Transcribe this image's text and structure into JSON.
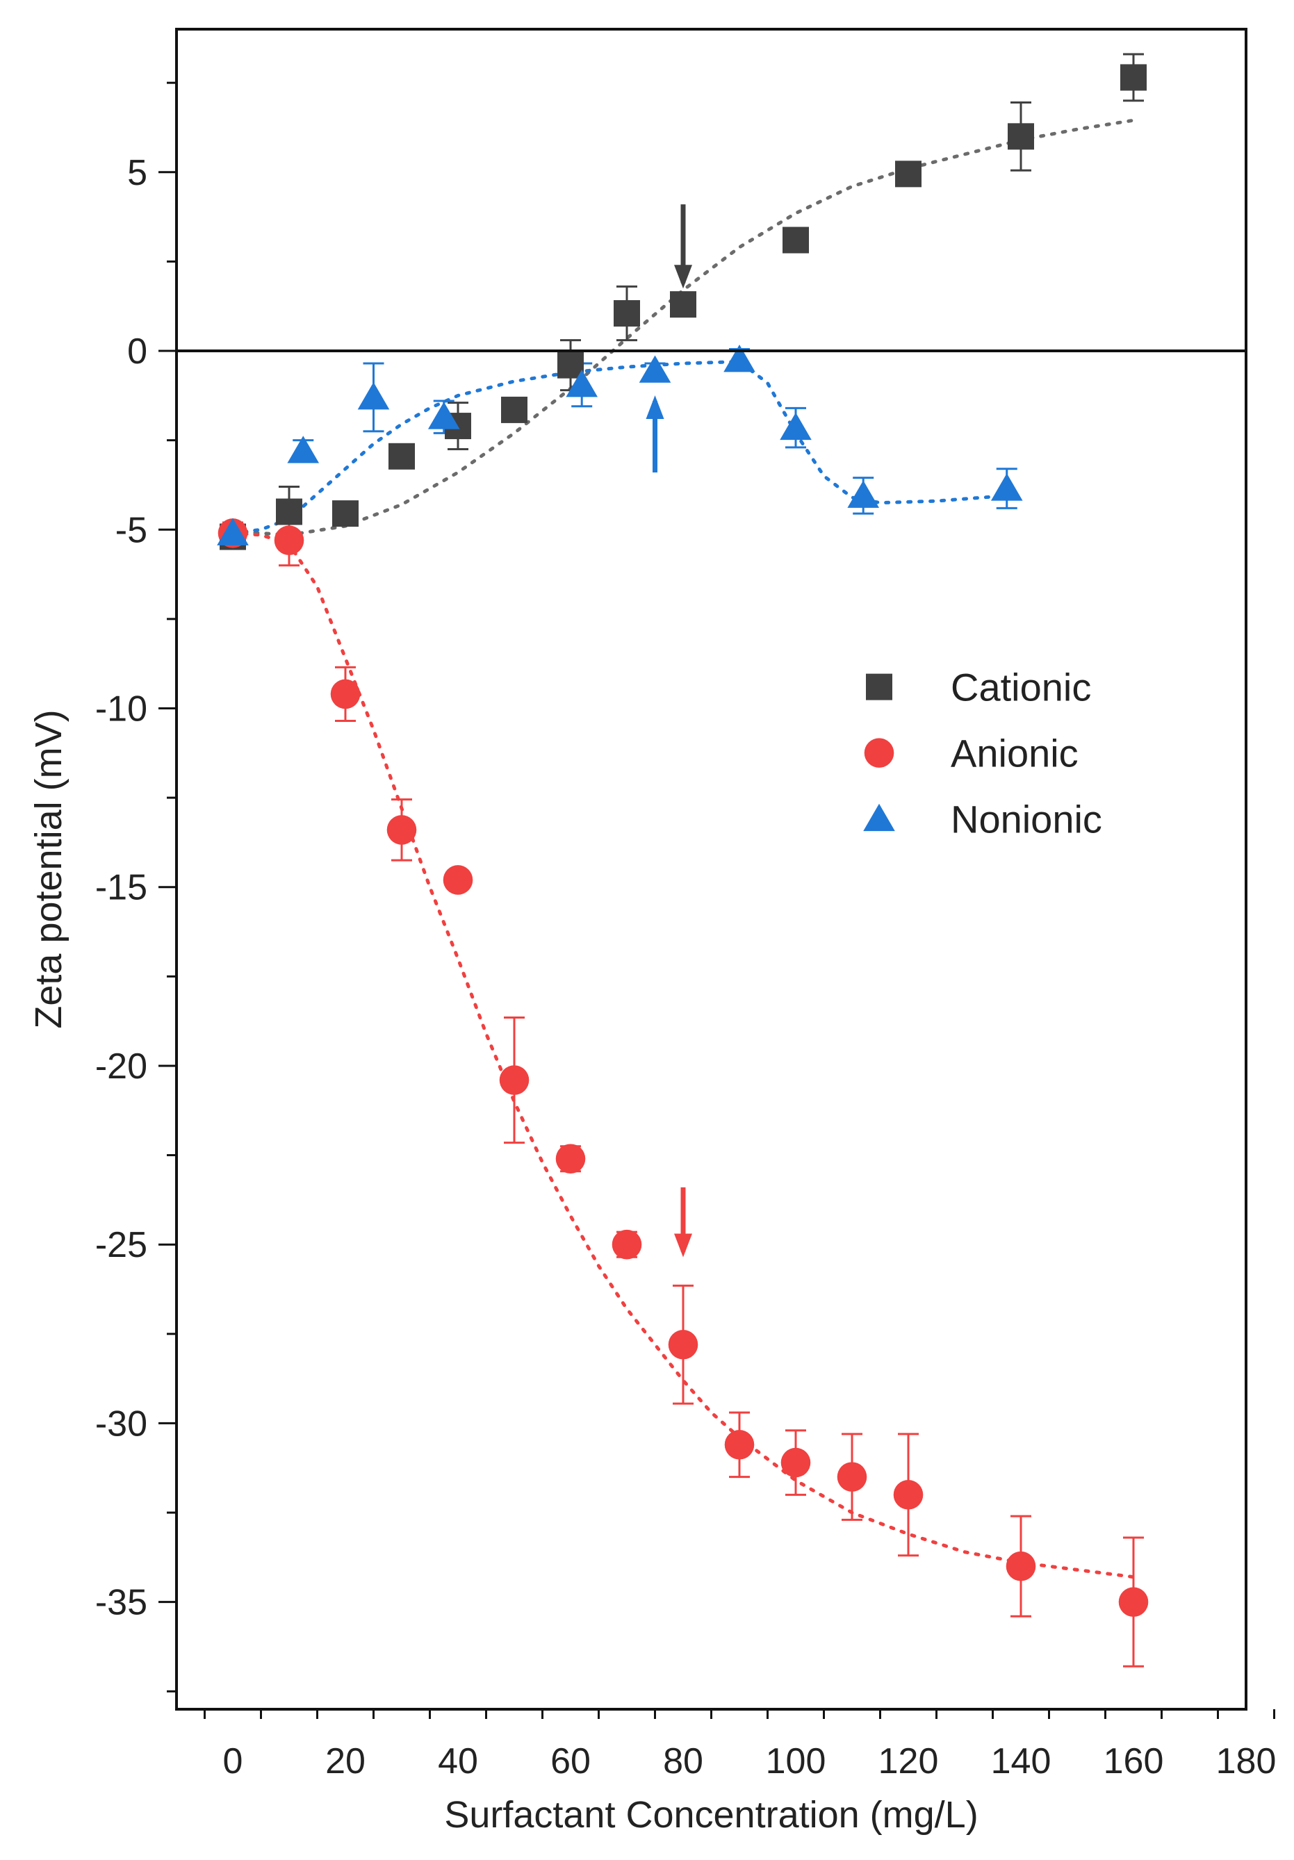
{
  "chart_data": {
    "type": "scatter",
    "title": "",
    "xlabel": "Surfactant Concentration (mg/L)",
    "ylabel": "Zeta potential (mV)",
    "xlim": [
      -10,
      180
    ],
    "ylim": [
      -38,
      9
    ],
    "x_ticks": [
      0,
      20,
      40,
      60,
      80,
      100,
      120,
      140,
      160,
      180
    ],
    "y_ticks": [
      5,
      0,
      -5,
      -10,
      -15,
      -20,
      -25,
      -30,
      -35
    ],
    "x_tick_labels": [
      "0",
      "20",
      "40",
      "60",
      "80",
      "100",
      "120",
      "140",
      "160",
      "180"
    ],
    "y_tick_labels": [
      "5",
      "0",
      "-5",
      "-10",
      "-15",
      "-20",
      "-25",
      "-30",
      "-35"
    ],
    "zero_line": 0,
    "legend_position": "center-right",
    "series": [
      {
        "name": "Cationic",
        "marker": "square",
        "color": "#404040",
        "x": [
          0,
          10,
          20,
          30,
          40,
          50,
          60,
          70,
          80,
          100,
          120,
          140,
          160
        ],
        "y": [
          -5.2,
          -4.5,
          -4.55,
          -2.95,
          -2.1,
          -1.65,
          -0.4,
          1.05,
          1.3,
          3.1,
          4.95,
          6.0,
          7.65
        ],
        "err": [
          0.2,
          0.7,
          0.0,
          0.0,
          0.65,
          0.0,
          0.7,
          0.75,
          0.0,
          0.0,
          0.0,
          0.95,
          0.65
        ],
        "fit_color": "#6b6b6b",
        "fit_x": [
          0,
          10,
          20,
          30,
          40,
          50,
          60,
          70,
          80,
          90,
          100,
          110,
          120,
          130,
          140,
          150,
          160
        ],
        "fit_y": [
          -5.05,
          -5.15,
          -4.9,
          -4.3,
          -3.4,
          -2.3,
          -1.05,
          0.35,
          1.7,
          2.9,
          3.85,
          4.6,
          5.1,
          5.5,
          5.9,
          6.2,
          6.45
        ]
      },
      {
        "name": "Anionic",
        "marker": "circle",
        "color": "#f04040",
        "x": [
          0,
          10,
          20,
          30,
          40,
          50,
          60,
          70,
          80,
          90,
          100,
          110,
          120,
          140,
          160
        ],
        "y": [
          -5.1,
          -5.3,
          -9.6,
          -13.4,
          -14.8,
          -20.4,
          -22.6,
          -25.0,
          -27.8,
          -30.6,
          -31.1,
          -31.5,
          -32.0,
          -34.0,
          -35.0
        ],
        "err": [
          0.3,
          0.7,
          0.75,
          0.85,
          0.2,
          1.75,
          0.35,
          0.35,
          1.65,
          0.9,
          0.9,
          1.2,
          1.7,
          1.4,
          1.8
        ],
        "fit_color": "#f04040",
        "fit_x": [
          0,
          5,
          10,
          15,
          20,
          25,
          30,
          35,
          40,
          45,
          50,
          55,
          60,
          65,
          70,
          75,
          80,
          85,
          90,
          95,
          100,
          110,
          120,
          130,
          140,
          150,
          160
        ],
        "fit_y": [
          -5.1,
          -5.15,
          -5.4,
          -6.6,
          -8.6,
          -10.6,
          -12.8,
          -15.0,
          -17.0,
          -19.1,
          -21.0,
          -22.7,
          -24.2,
          -25.6,
          -26.8,
          -27.8,
          -28.8,
          -29.7,
          -30.4,
          -31.0,
          -31.6,
          -32.5,
          -33.1,
          -33.6,
          -33.9,
          -34.1,
          -34.3
        ]
      },
      {
        "name": "Nonionic",
        "marker": "triangle",
        "color": "#1f78d6",
        "x": [
          0,
          12.5,
          25,
          37.5,
          62,
          75,
          90,
          100,
          112,
          137.5
        ],
        "y": [
          -5.1,
          -2.8,
          -1.3,
          -1.85,
          -0.95,
          -0.55,
          -0.25,
          -2.15,
          -4.05,
          -3.85
        ],
        "err": [
          0.25,
          0.3,
          0.95,
          0.45,
          0.6,
          0.2,
          0.3,
          0.55,
          0.5,
          0.55
        ],
        "fit_color": "#1f78d6",
        "fit_x": [
          0,
          5,
          10,
          15,
          20,
          25,
          30,
          35,
          40,
          50,
          60,
          70,
          80,
          90,
          95,
          100,
          105,
          110,
          115,
          125,
          137.5
        ],
        "fit_y": [
          -5.1,
          -5.0,
          -4.7,
          -4.0,
          -3.3,
          -2.6,
          -2.05,
          -1.6,
          -1.25,
          -0.85,
          -0.6,
          -0.45,
          -0.35,
          -0.3,
          -0.9,
          -2.3,
          -3.5,
          -4.1,
          -4.25,
          -4.2,
          -4.05
        ]
      }
    ],
    "annotations": [
      {
        "type": "arrow",
        "direction": "down",
        "color": "#404040",
        "x": 80,
        "y_from": 4.1,
        "y_to": 1.9
      },
      {
        "type": "arrow",
        "direction": "up",
        "color": "#1f78d6",
        "x": 75,
        "y_from": -3.4,
        "y_to": -1.4
      },
      {
        "type": "arrow",
        "direction": "down",
        "color": "#f04040",
        "x": 80,
        "y_from": -23.4,
        "y_to": -25.2
      }
    ]
  }
}
